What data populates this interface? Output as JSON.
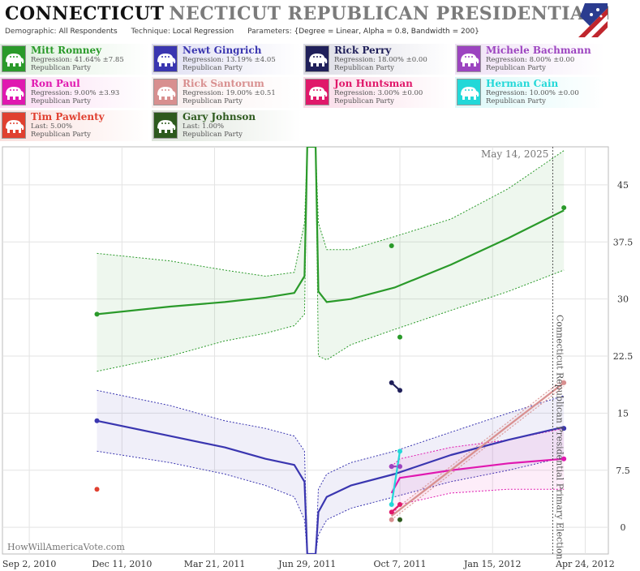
{
  "header": {
    "title_state": "CONNECTICUT",
    "title_rest": "NECTICUT REPUBLICAN PRESIDENTIAL PRIMAR",
    "meta": [
      {
        "label": "Demographic:",
        "value": "All Respondents"
      },
      {
        "label": "Technique:",
        "value": "Local Regression"
      },
      {
        "label": "Parameters:",
        "value": "{Degree = Linear, Alpha = 0.8, Bandwidth = 200}"
      }
    ]
  },
  "candidates": [
    {
      "name": "Mitt Romney",
      "line1": "Regression: 41.64% ±7.85",
      "line2": "Republican Party",
      "color": "#2a9a2a",
      "icon": "elephant-icon"
    },
    {
      "name": "Newt Gingrich",
      "line1": "Regression: 13.19% ±4.05",
      "line2": "Republican Party",
      "color": "#3a36b0",
      "icon": "elephant-icon"
    },
    {
      "name": "Rick Perry",
      "line1": "Regression: 18.00% ±0.00",
      "line2": "Republican Party",
      "color": "#20205a",
      "icon": "elephant-icon"
    },
    {
      "name": "Michele Bachmann",
      "line1": "Regression: 8.00% ±0.00",
      "line2": "Republican Party",
      "color": "#9c44c0",
      "icon": "elephant-icon"
    },
    {
      "name": "Ron Paul",
      "line1": "Regression: 9.00% ±3.93",
      "line2": "Republican Party",
      "color": "#e018b0",
      "icon": "elephant-icon"
    },
    {
      "name": "Rick Santorum",
      "line1": "Regression: 19.00% ±0.51",
      "line2": "Republican Party",
      "color": "#d88f8f",
      "icon": "elephant-icon"
    },
    {
      "name": "Jon Huntsman",
      "line1": "Regression: 3.00% ±0.00",
      "line2": "Republican Party",
      "color": "#e0186a",
      "icon": "elephant-icon"
    },
    {
      "name": "Herman Cain",
      "line1": "Regression: 10.00% ±0.00",
      "line2": "Republican Party",
      "color": "#22d8d8",
      "icon": "elephant-icon"
    },
    {
      "name": "Tim Pawlenty",
      "line1": "Last: 5.00%",
      "line2": "Republican Party",
      "color": "#e04030",
      "icon": "elephant-icon"
    },
    {
      "name": "Gary Johnson",
      "line1": "Last: 1.00%",
      "line2": "Republican Party",
      "color": "#2d5a1e",
      "icon": "elephant-icon"
    }
  ],
  "chart_data": {
    "type": "line",
    "date_label": "May 14, 2025",
    "vertical_label": "Connecticut Republican Presidential Primary Election",
    "watermark": "HowWillAmericaVote.com",
    "x_ticks": [
      "Sep 2, 2010",
      "Dec 11, 2010",
      "Mar 21, 2011",
      "Jun 29, 2011",
      "Oct 7, 2011",
      "Jan 15, 2012",
      "Apr 24, 2012"
    ],
    "y_ticks": [
      "0",
      "7.5",
      "15",
      "22.5",
      "30",
      "37.5",
      "45"
    ],
    "ylim": [
      -3.5,
      50
    ],
    "xlim": [
      "2010-08-04",
      "2012-05-19"
    ],
    "election_date": "2012-04-24",
    "grid": true,
    "series": [
      {
        "name": "Mitt Romney",
        "color": "#2a9a2a",
        "line": [
          [
            "2010-11-14",
            28
          ],
          [
            "2011-02-01",
            29
          ],
          [
            "2011-04-01",
            29.6
          ],
          [
            "2011-05-15",
            30.2
          ],
          [
            "2011-06-15",
            30.8
          ],
          [
            "2011-06-26",
            33
          ],
          [
            "2011-06-29",
            50
          ],
          [
            "2011-07-08",
            50
          ],
          [
            "2011-07-11",
            31
          ],
          [
            "2011-07-20",
            29.6
          ],
          [
            "2011-08-15",
            30
          ],
          [
            "2011-10-01",
            31.5
          ],
          [
            "2011-12-01",
            34.5
          ],
          [
            "2012-02-01",
            38
          ],
          [
            "2012-04-01",
            41.64
          ]
        ],
        "upper": [
          [
            "2010-11-14",
            36
          ],
          [
            "2011-02-01",
            35
          ],
          [
            "2011-04-01",
            33.8
          ],
          [
            "2011-05-15",
            33
          ],
          [
            "2011-06-15",
            33.5
          ],
          [
            "2011-06-26",
            40
          ],
          [
            "2011-06-29",
            50
          ],
          [
            "2011-07-08",
            50
          ],
          [
            "2011-07-11",
            40
          ],
          [
            "2011-07-20",
            36.5
          ],
          [
            "2011-08-15",
            36.5
          ],
          [
            "2011-10-01",
            38.2
          ],
          [
            "2011-12-01",
            40.5
          ],
          [
            "2012-02-01",
            44.5
          ],
          [
            "2012-04-01",
            49.5
          ]
        ],
        "lower": [
          [
            "2010-11-14",
            20.5
          ],
          [
            "2011-02-01",
            22.5
          ],
          [
            "2011-04-01",
            24.5
          ],
          [
            "2011-05-15",
            25.5
          ],
          [
            "2011-06-15",
            26.5
          ],
          [
            "2011-06-26",
            28
          ],
          [
            "2011-06-29",
            50
          ],
          [
            "2011-07-08",
            50
          ],
          [
            "2011-07-11",
            22.5
          ],
          [
            "2011-07-20",
            22
          ],
          [
            "2011-08-15",
            24
          ],
          [
            "2011-10-01",
            26
          ],
          [
            "2011-12-01",
            28.5
          ],
          [
            "2012-02-01",
            31
          ],
          [
            "2012-04-01",
            33.8
          ]
        ],
        "points": [
          [
            "2010-11-14",
            28
          ],
          [
            "2011-09-28",
            37
          ],
          [
            "2011-10-07",
            25
          ],
          [
            "2012-04-01",
            42
          ]
        ]
      },
      {
        "name": "Newt Gingrich",
        "color": "#3a36b0",
        "line": [
          [
            "2010-11-14",
            14
          ],
          [
            "2011-02-01",
            12
          ],
          [
            "2011-04-01",
            10.5
          ],
          [
            "2011-05-15",
            9
          ],
          [
            "2011-06-15",
            8.2
          ],
          [
            "2011-06-26",
            6
          ],
          [
            "2011-06-29",
            -3.5
          ],
          [
            "2011-07-08",
            -3.5
          ],
          [
            "2011-07-11",
            2
          ],
          [
            "2011-07-20",
            4
          ],
          [
            "2011-08-15",
            5.5
          ],
          [
            "2011-10-01",
            7
          ],
          [
            "2011-12-01",
            9.5
          ],
          [
            "2012-02-01",
            11.5
          ],
          [
            "2012-04-01",
            13.19
          ]
        ],
        "upper": [
          [
            "2010-11-14",
            18
          ],
          [
            "2011-02-01",
            16
          ],
          [
            "2011-04-01",
            14
          ],
          [
            "2011-05-15",
            13
          ],
          [
            "2011-06-15",
            12
          ],
          [
            "2011-06-26",
            10
          ],
          [
            "2011-06-29",
            -3.5
          ],
          [
            "2011-07-08",
            -3.5
          ],
          [
            "2011-07-11",
            5
          ],
          [
            "2011-07-20",
            7
          ],
          [
            "2011-08-15",
            8.5
          ],
          [
            "2011-10-01",
            10
          ],
          [
            "2011-12-01",
            12.5
          ],
          [
            "2012-02-01",
            15
          ],
          [
            "2012-04-01",
            17.3
          ]
        ],
        "lower": [
          [
            "2010-11-14",
            10
          ],
          [
            "2011-02-01",
            8.5
          ],
          [
            "2011-04-01",
            7
          ],
          [
            "2011-05-15",
            5.5
          ],
          [
            "2011-06-15",
            4
          ],
          [
            "2011-06-26",
            1
          ],
          [
            "2011-06-29",
            -3.5
          ],
          [
            "2011-07-08",
            -3.5
          ],
          [
            "2011-07-11",
            -1
          ],
          [
            "2011-07-20",
            1
          ],
          [
            "2011-08-15",
            2.5
          ],
          [
            "2011-10-01",
            4
          ],
          [
            "2011-12-01",
            6
          ],
          [
            "2012-02-01",
            7.5
          ],
          [
            "2012-04-01",
            9.2
          ]
        ],
        "points": [
          [
            "2010-11-14",
            14
          ],
          [
            "2012-04-01",
            13
          ]
        ]
      },
      {
        "name": "Ron Paul",
        "color": "#e018b0",
        "line": [
          [
            "2011-09-28",
            4.5
          ],
          [
            "2011-10-07",
            6.5
          ],
          [
            "2011-12-01",
            7.5
          ],
          [
            "2012-02-01",
            8.4
          ],
          [
            "2012-04-01",
            9
          ]
        ],
        "upper": [
          [
            "2011-09-28",
            8
          ],
          [
            "2011-10-07",
            9
          ],
          [
            "2011-12-01",
            10.5
          ],
          [
            "2012-02-01",
            11.5
          ],
          [
            "2012-04-01",
            13
          ]
        ],
        "lower": [
          [
            "2011-09-28",
            1.5
          ],
          [
            "2011-10-07",
            3
          ],
          [
            "2011-12-01",
            4.5
          ],
          [
            "2012-02-01",
            5
          ],
          [
            "2012-04-01",
            5
          ]
        ],
        "points": [
          [
            "2011-09-28",
            8
          ],
          [
            "2012-04-01",
            9
          ]
        ]
      },
      {
        "name": "Rick Santorum",
        "color": "#d88f8f",
        "line": [
          [
            "2011-09-28",
            1.5
          ],
          [
            "2012-04-01",
            19
          ]
        ],
        "upper": [
          [
            "2011-09-28",
            2
          ],
          [
            "2012-04-01",
            19.5
          ]
        ],
        "lower": [
          [
            "2011-09-28",
            1
          ],
          [
            "2012-04-01",
            18.5
          ]
        ],
        "points": [
          [
            "2011-09-28",
            1
          ],
          [
            "2012-04-01",
            19
          ]
        ]
      },
      {
        "name": "Rick Perry",
        "color": "#20205a",
        "line": [
          [
            "2011-09-28",
            19
          ],
          [
            "2011-10-07",
            18
          ]
        ],
        "points": [
          [
            "2011-09-28",
            19
          ],
          [
            "2011-10-07",
            18
          ]
        ]
      },
      {
        "name": "Michele Bachmann",
        "color": "#9c44c0",
        "line": [
          [
            "2011-09-28",
            8
          ],
          [
            "2011-10-07",
            8
          ]
        ],
        "points": [
          [
            "2011-09-28",
            8
          ],
          [
            "2011-10-07",
            8
          ]
        ]
      },
      {
        "name": "Jon Huntsman",
        "color": "#e0186a",
        "line": [
          [
            "2011-09-28",
            2
          ],
          [
            "2011-10-07",
            3
          ]
        ],
        "points": [
          [
            "2011-09-28",
            2
          ],
          [
            "2011-10-07",
            3
          ]
        ]
      },
      {
        "name": "Herman Cain",
        "color": "#22d8d8",
        "line": [
          [
            "2011-09-28",
            3
          ],
          [
            "2011-10-07",
            10
          ]
        ],
        "points": [
          [
            "2011-09-28",
            3
          ],
          [
            "2011-10-07",
            10
          ]
        ]
      },
      {
        "name": "Tim Pawlenty",
        "color": "#e04030",
        "line": [],
        "points": [
          [
            "2010-11-14",
            5
          ]
        ]
      },
      {
        "name": "Gary Johnson",
        "color": "#2d5a1e",
        "line": [],
        "points": [
          [
            "2011-10-07",
            1
          ]
        ]
      }
    ]
  }
}
